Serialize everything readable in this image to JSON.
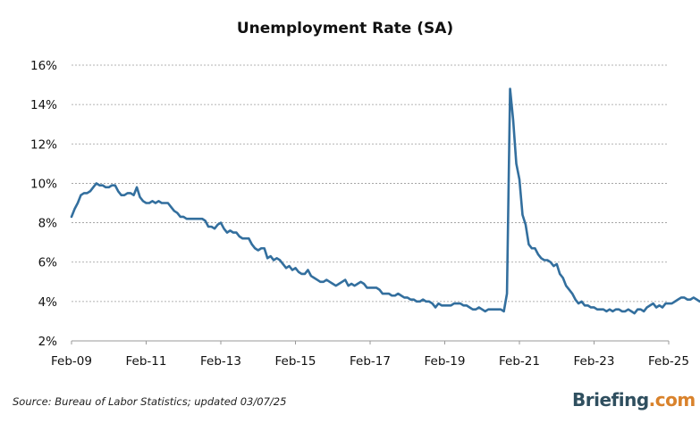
{
  "source": "Source: Bureau of Labor Statistics; updated 03/07/25",
  "brand": {
    "name": "Briefing",
    "suffix": ".com",
    "dot_color": "#d9822b",
    "text_color": "#2f4f5f"
  },
  "chart_data": {
    "type": "line",
    "title": "Unemployment Rate (SA)",
    "xlabel": "",
    "ylabel": "",
    "x_ticks": [
      "Feb-09",
      "Feb-11",
      "Feb-13",
      "Feb-15",
      "Feb-17",
      "Feb-19",
      "Feb-21",
      "Feb-23",
      "Feb-25"
    ],
    "y_ticks": [
      "2%",
      "4%",
      "6%",
      "8%",
      "10%",
      "12%",
      "14%",
      "16%"
    ],
    "ylim": [
      2,
      16
    ],
    "xlim": [
      "2009-02",
      "2025-02"
    ],
    "grid": "horizontal dashed",
    "legend": "none",
    "line_color": "#336f9e",
    "series": [
      {
        "x_start": "2009-02",
        "frequency": "monthly",
        "values": [
          8.3,
          8.7,
          9.0,
          9.4,
          9.5,
          9.5,
          9.6,
          9.8,
          10.0,
          9.9,
          9.9,
          9.8,
          9.8,
          9.9,
          9.9,
          9.6,
          9.4,
          9.4,
          9.5,
          9.5,
          9.4,
          9.8,
          9.3,
          9.1,
          9.0,
          9.0,
          9.1,
          9.0,
          9.1,
          9.0,
          9.0,
          9.0,
          8.8,
          8.6,
          8.5,
          8.3,
          8.3,
          8.2,
          8.2,
          8.2,
          8.2,
          8.2,
          8.2,
          8.1,
          7.8,
          7.8,
          7.7,
          7.9,
          8.0,
          7.7,
          7.5,
          7.6,
          7.5,
          7.5,
          7.3,
          7.2,
          7.2,
          7.2,
          6.9,
          6.7,
          6.6,
          6.7,
          6.7,
          6.2,
          6.3,
          6.1,
          6.2,
          6.1,
          5.9,
          5.7,
          5.8,
          5.6,
          5.7,
          5.5,
          5.4,
          5.4,
          5.6,
          5.3,
          5.2,
          5.1,
          5.0,
          5.0,
          5.1,
          5.0,
          4.9,
          4.8,
          4.9,
          5.0,
          5.1,
          4.8,
          4.9,
          4.8,
          4.9,
          5.0,
          4.9,
          4.7,
          4.7,
          4.7,
          4.7,
          4.6,
          4.4,
          4.4,
          4.4,
          4.3,
          4.3,
          4.4,
          4.3,
          4.2,
          4.2,
          4.1,
          4.1,
          4.0,
          4.0,
          4.1,
          4.0,
          4.0,
          3.9,
          3.7,
          3.9,
          3.8,
          3.8,
          3.8,
          3.8,
          3.9,
          3.9,
          3.9,
          3.8,
          3.8,
          3.7,
          3.6,
          3.6,
          3.7,
          3.6,
          3.5,
          3.6,
          3.6,
          3.6,
          3.6,
          3.6,
          3.5,
          4.4,
          14.8,
          13.2,
          11.0,
          10.2,
          8.4,
          7.9,
          6.9,
          6.7,
          6.7,
          6.4,
          6.2,
          6.1,
          6.1,
          6.0,
          5.8,
          5.9,
          5.4,
          5.2,
          4.8,
          4.6,
          4.4,
          4.1,
          3.9,
          4.0,
          3.8,
          3.8,
          3.7,
          3.7,
          3.6,
          3.6,
          3.6,
          3.5,
          3.6,
          3.5,
          3.6,
          3.6,
          3.5,
          3.5,
          3.6,
          3.5,
          3.4,
          3.6,
          3.6,
          3.5,
          3.7,
          3.8,
          3.9,
          3.7,
          3.8,
          3.7,
          3.9,
          3.9,
          3.9,
          4.0,
          4.1,
          4.2,
          4.2,
          4.1,
          4.1,
          4.2,
          4.1,
          4.0,
          4.1,
          4.1
        ]
      }
    ]
  }
}
